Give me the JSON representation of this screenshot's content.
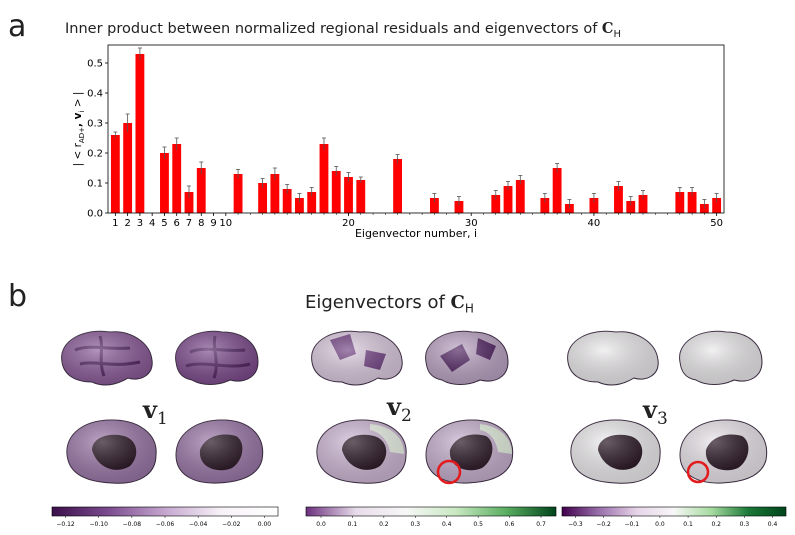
{
  "panel_a": {
    "letter": "a",
    "title_prefix": "Inner product between normalized regional residuals and eigenvectors of ",
    "title_sym": "C",
    "title_sub": "H"
  },
  "panel_b": {
    "letter": "b",
    "title_prefix": "Eigenvectors of ",
    "title_sym": "C",
    "title_sub": "H",
    "labels": [
      {
        "sym": "v",
        "sub": "1"
      },
      {
        "sym": "v",
        "sub": "2"
      },
      {
        "sym": "v",
        "sub": "3"
      }
    ],
    "colorbars": [
      {
        "ticks": [
          "−0.12",
          "−0.10",
          "−0.08",
          "−0.06",
          "−0.04",
          "−0.02",
          "0.00"
        ],
        "colors": [
          "#3b0f4a",
          "#7b4c8f",
          "#c6a7cf",
          "#f7f2f7",
          "#ffffff"
        ]
      },
      {
        "ticks": [
          "0.0",
          "0.1",
          "0.2",
          "0.3",
          "0.4",
          "0.5",
          "0.6",
          "0.7"
        ],
        "colors": [
          "#6b2f7e",
          "#e8dcea",
          "#f7f7f7",
          "#c9e8c1",
          "#5aae61",
          "#00441b"
        ]
      },
      {
        "ticks": [
          "−0.3",
          "−0.2",
          "−0.1",
          "0.0",
          "0.1",
          "0.2",
          "0.3",
          "0.4"
        ],
        "colors": [
          "#40004b",
          "#9970ab",
          "#e7d4e8",
          "#f7f7f7",
          "#a6dba0",
          "#1b7837",
          "#00441b"
        ]
      }
    ]
  },
  "chart_data": {
    "type": "bar",
    "title": "Inner product between normalized regional residuals and eigenvectors of C_H",
    "xlabel": "Eigenvector number, i",
    "ylabel": "| < r̃_AD+ , v_i > |",
    "ylabel_main": "| < r",
    "ylabel_sub": "AD+",
    "ylabel_tail": ", v",
    "ylabel_i": "i",
    "ylabel_end": " > |",
    "ylim": [
      0,
      0.56
    ],
    "yticks": [
      "0.0",
      "0.1",
      "0.2",
      "0.3",
      "0.4",
      "0.5"
    ],
    "xtick_labels": [
      "1",
      "2",
      "3",
      "4",
      "5",
      "6",
      "7",
      "8",
      "9",
      "10",
      "20",
      "30",
      "40",
      "50"
    ],
    "bar_color": "#ff0000",
    "x": [
      1,
      2,
      3,
      4,
      5,
      6,
      7,
      8,
      9,
      10,
      11,
      12,
      13,
      14,
      15,
      16,
      17,
      18,
      19,
      20,
      21,
      22,
      23,
      24,
      25,
      26,
      27,
      28,
      29,
      30,
      31,
      32,
      33,
      34,
      35,
      36,
      37,
      38,
      39,
      40,
      41,
      42,
      43,
      44,
      45,
      46,
      47,
      48,
      49,
      50
    ],
    "values": [
      0.26,
      0.3,
      0.53,
      0,
      0.2,
      0.23,
      0.07,
      0.15,
      0,
      0,
      0.13,
      0,
      0.1,
      0.13,
      0.08,
      0.05,
      0.07,
      0.23,
      0.14,
      0.12,
      0.11,
      0,
      0,
      0.18,
      0,
      0,
      0.05,
      0,
      0.04,
      0,
      0,
      0.06,
      0.09,
      0.11,
      0,
      0.05,
      0.15,
      0.03,
      0,
      0.05,
      0,
      0.09,
      0.04,
      0.06,
      0,
      0,
      0.07,
      0.07,
      0.03,
      0.05
    ],
    "errors": [
      0.01,
      0.03,
      0.02,
      0,
      0.02,
      0.02,
      0.02,
      0.02,
      0,
      0,
      0.015,
      0,
      0.015,
      0.02,
      0.015,
      0.015,
      0.015,
      0.02,
      0.015,
      0.015,
      0.01,
      0,
      0,
      0.015,
      0,
      0,
      0.015,
      0,
      0.015,
      0,
      0,
      0.015,
      0.015,
      0.015,
      0,
      0.015,
      0.015,
      0.015,
      0,
      0.015,
      0,
      0.015,
      0.015,
      0.015,
      0,
      0,
      0.015,
      0.015,
      0.015,
      0.015
    ]
  }
}
